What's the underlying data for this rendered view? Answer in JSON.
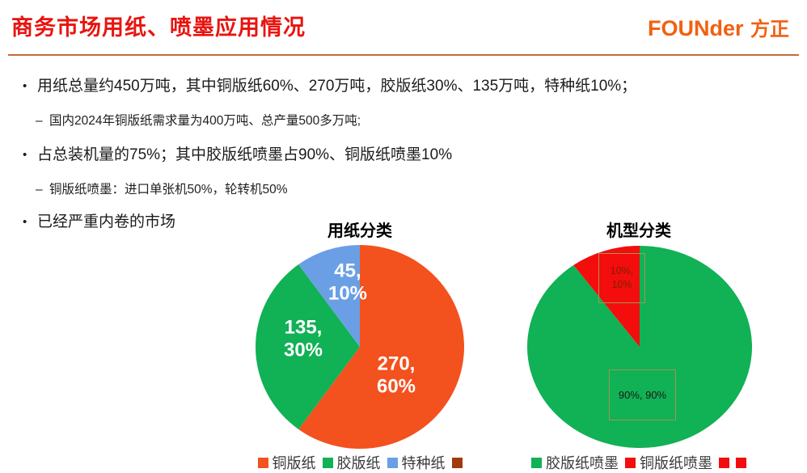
{
  "header": {
    "title": "商务市场用纸、喷墨应用情况",
    "title_color": "#e8140f",
    "logo_text": "FOUNder",
    "logo_cjk": "方正",
    "logo_color": "#f26011",
    "rule_color": "#c5693b"
  },
  "bullets": [
    {
      "level": 1,
      "text": "用纸总量约450万吨，其中铜版纸60%、270万吨，胶版纸30%、135万吨，特种纸10%；"
    },
    {
      "level": 2,
      "text": "国内2024年铜版纸需求量为400万吨、总产量500多万吨;"
    },
    {
      "level": 1,
      "text": "占总装机量的75%；其中胶版纸喷墨占90%、铜版纸喷墨10%"
    },
    {
      "level": 2,
      "text": "铜版纸喷墨：进口单张机50%，轮转机50%"
    },
    {
      "level": 1,
      "text": "已经严重内卷的市场"
    }
  ],
  "chart_data": [
    {
      "type": "pie",
      "title": "用纸分类",
      "slices": [
        {
          "label": "铜版纸",
          "value": 270,
          "pct": 60,
          "color": "#f3511e",
          "data_label": [
            "270,",
            "60%"
          ],
          "label_color": "#ffffff"
        },
        {
          "label": "胶版纸",
          "value": 135,
          "pct": 30,
          "color": "#11b155",
          "data_label": [
            "135,",
            "30%"
          ],
          "label_color": "#ffffff"
        },
        {
          "label": "特种纸",
          "value": 45,
          "pct": 10,
          "color": "#6b9fe5",
          "data_label": [
            "45,",
            "10%"
          ],
          "label_color": "#ffffff"
        }
      ],
      "legend": [
        {
          "label": "铜版纸",
          "color": "#f3511e"
        },
        {
          "label": "胶版纸",
          "color": "#11b155"
        },
        {
          "label": "特种纸",
          "color": "#6b9fe5"
        },
        {
          "label": "",
          "color": "#a03a0d"
        }
      ],
      "legend_position": "bottom"
    },
    {
      "type": "pie",
      "title": "机型分类",
      "slices": [
        {
          "label": "胶版纸喷墨",
          "value": 90,
          "pct": 90,
          "color": "#11b155"
        },
        {
          "label": "铜版纸喷墨",
          "value": 10,
          "pct": 10,
          "color": "#f30d0d"
        }
      ],
      "annotations": [
        {
          "lines": [
            "10%,",
            "10%"
          ],
          "text_color": "#7e1f04"
        },
        {
          "lines": [
            "90%, 90%"
          ],
          "text_color": "#1a1a1a"
        }
      ],
      "legend": [
        {
          "label": "胶版纸喷墨",
          "color": "#11b155"
        },
        {
          "label": "铜版纸喷墨",
          "color": "#f30d0d"
        },
        {
          "label": "",
          "color": "#f30d0d"
        },
        {
          "label": "",
          "color": "#f30d0d"
        }
      ],
      "legend_position": "bottom"
    }
  ]
}
